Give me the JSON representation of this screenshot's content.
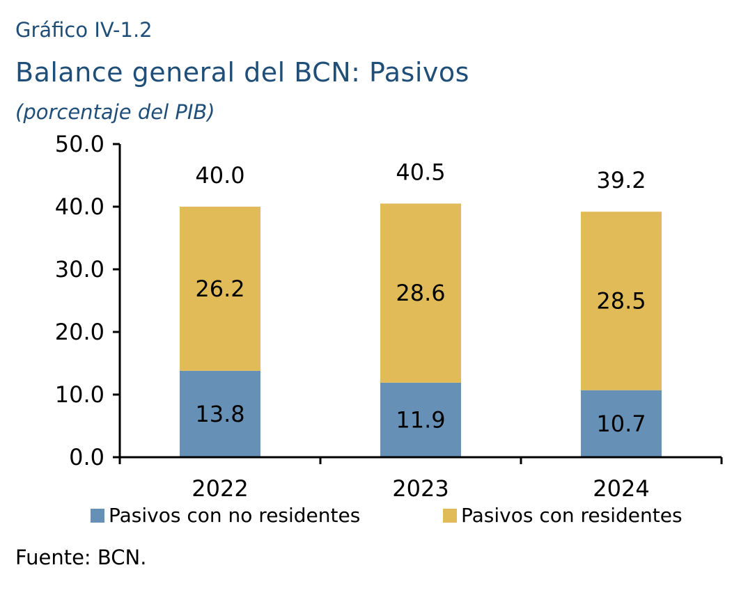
{
  "header": {
    "label": "Gráfico IV-1.2",
    "title": "Balance general del BCN: Pasivos",
    "subtitle": "(porcentaje del PIB)"
  },
  "source": "Fuente: BCN.",
  "chart_data": {
    "type": "bar",
    "stacked": true,
    "categories": [
      "2022",
      "2023",
      "2024"
    ],
    "series": [
      {
        "name": "Pasivos con no residentes",
        "values": [
          13.8,
          11.9,
          10.7
        ],
        "color": "#6790b6"
      },
      {
        "name": "Pasivos con residentes",
        "values": [
          26.2,
          28.6,
          28.5
        ],
        "color": "#e1bb58"
      }
    ],
    "totals": [
      40.0,
      40.5,
      39.2
    ],
    "ylim": [
      0,
      50
    ],
    "yticks": [
      "0.0",
      "10.0",
      "20.0",
      "30.0",
      "40.0",
      "50.0"
    ],
    "grid": false,
    "legend_position": "bottom"
  }
}
